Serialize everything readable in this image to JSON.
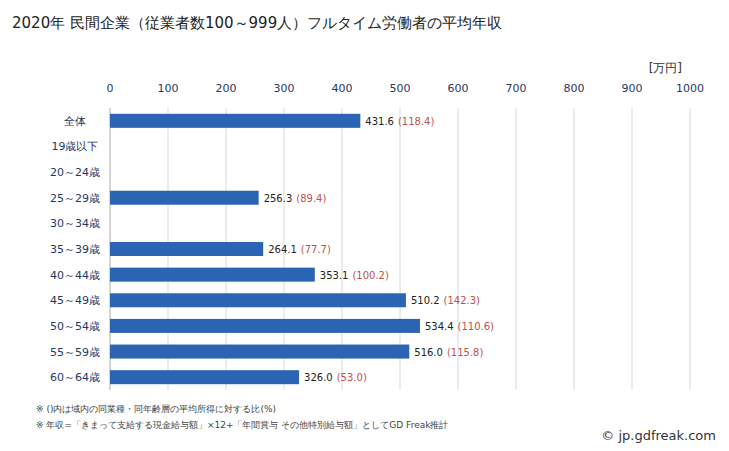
{
  "chart_data": {
    "type": "bar",
    "orientation": "horizontal",
    "title": "2020年 民間企業（従業者数100～999人）フルタイム労働者の平均年収",
    "unit_label": "[万円]",
    "categories": [
      "全体",
      "19歳以下",
      "20～24歳",
      "25～29歳",
      "30～34歳",
      "35～39歳",
      "40～44歳",
      "45～49歳",
      "50～54歳",
      "55～59歳",
      "60～64歳"
    ],
    "values": [
      431.6,
      null,
      null,
      256.3,
      null,
      264.1,
      353.1,
      510.2,
      534.4,
      516.0,
      326.0
    ],
    "value_labels": [
      "431.6",
      null,
      null,
      "256.3",
      null,
      "264.1",
      "353.1",
      "510.2",
      "534.4",
      "516.0",
      "326.0"
    ],
    "ratio_labels": [
      "(118.4)",
      null,
      null,
      "(89.4)",
      null,
      "(77.7)",
      "(100.2)",
      "(142.3)",
      "(110.6)",
      "(115.8)",
      "(53.0)"
    ],
    "color": "#2a64b2",
    "xlim": [
      0,
      1000
    ],
    "xticks": [
      0,
      100,
      200,
      300,
      400,
      500,
      600,
      700,
      800,
      900,
      1000
    ],
    "grid": true,
    "data_labels": true,
    "notes": [
      "※ ()内は域内の同業種・同年齢層の平均所得に対する比(%)",
      "※ 年収=「きまって支給する現金給与額」×12+「年間賞与 その他特別給与額」としてGD Freak推計"
    ],
    "source": "© jp.gdfreak.com"
  }
}
